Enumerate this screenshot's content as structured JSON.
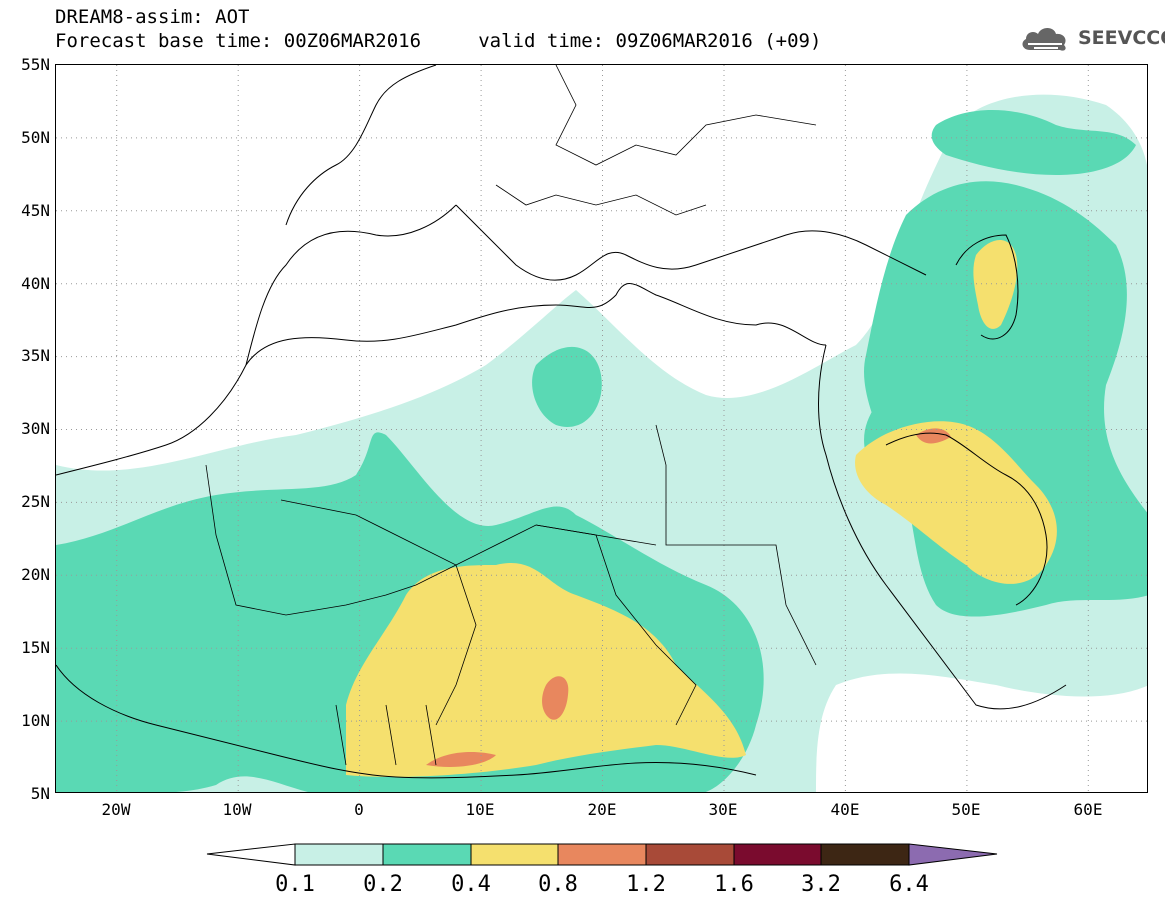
{
  "title": {
    "line1": "DREAM8-assim: AOT",
    "line2": "Forecast base time: 00Z06MAR2016     valid time: 09Z06MAR2016 (+09)"
  },
  "logo": {
    "text": "SEEVCCC",
    "icon": "cloud-icon"
  },
  "map": {
    "lon_range": [
      -25,
      65
    ],
    "lat_range": [
      5,
      55
    ],
    "lat_ticks": [
      "55N",
      "50N",
      "45N",
      "40N",
      "35N",
      "30N",
      "25N",
      "20N",
      "15N",
      "10N",
      "5N"
    ],
    "lon_ticks": [
      "20W",
      "10W",
      "0",
      "10E",
      "20E",
      "30E",
      "40E",
      "50E",
      "60E"
    ],
    "grid": "dotted"
  },
  "legend": {
    "labels": [
      "0.1",
      "0.2",
      "0.4",
      "0.8",
      "1.2",
      "1.6",
      "3.2",
      "6.4"
    ],
    "colors": [
      "#ffffff",
      "#c8f0e6",
      "#5ad9b4",
      "#f5e06e",
      "#e8875e",
      "#a84a38",
      "#7a0b2e",
      "#3d2614",
      "#8c6bb0"
    ]
  }
}
